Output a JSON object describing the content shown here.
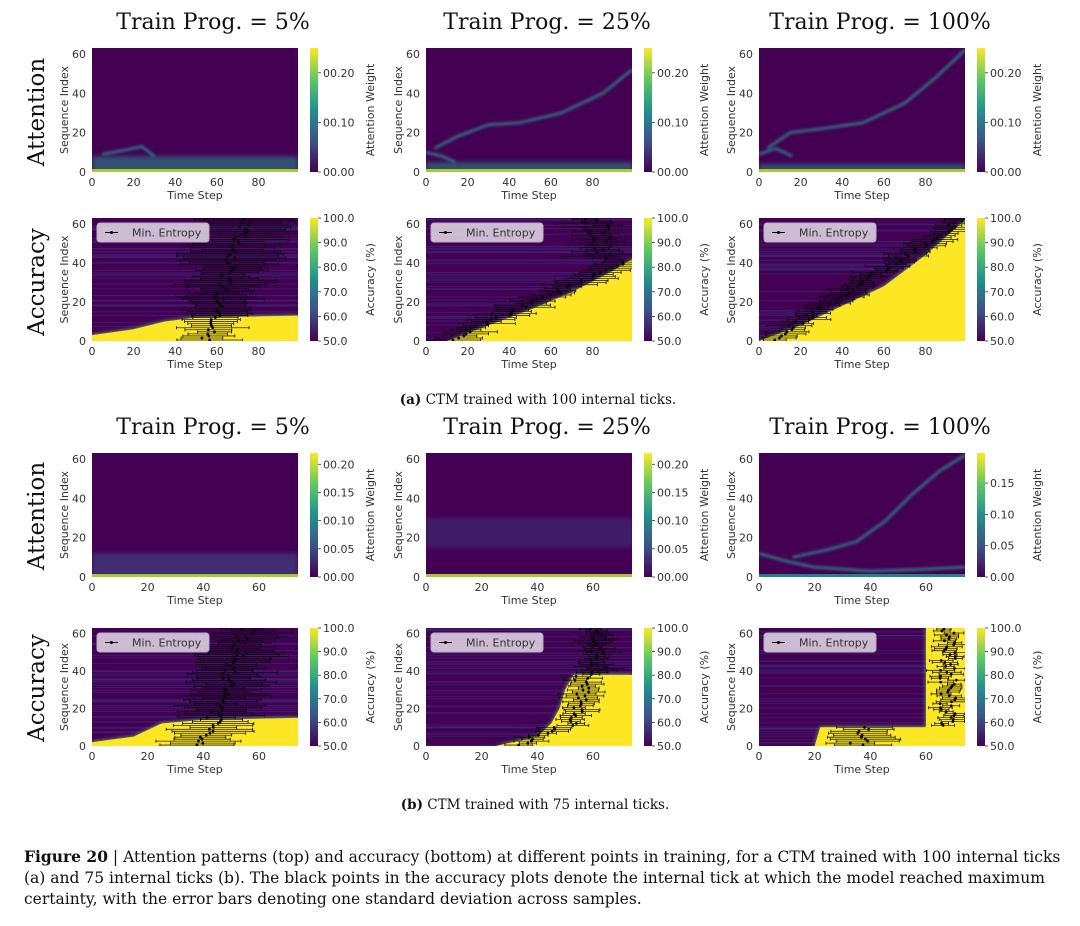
{
  "figure": {
    "column_titles": [
      "Train Prog. = 5%",
      "Train Prog. = 25%",
      "Train Prog. = 100%"
    ],
    "row_labels": [
      "Attention",
      "Accuracy"
    ],
    "subcaptions": [
      {
        "label": "(a)",
        "text": "CTM trained with 100 internal ticks."
      },
      {
        "label": "(b)",
        "text": "CTM trained with 75 internal ticks."
      }
    ],
    "caption": {
      "label": "Figure 20",
      "text": " | Attention patterns (top) and accuracy (bottom) at different points in training, for a CTM trained with 100 internal ticks (a) and 75 internal ticks (b). The black points in the accuracy plots denote the internal tick at which the model reached maximum certainty, with the error bars denoting one standard deviation across samples."
    },
    "legend_label": "Min. Entropy"
  },
  "chart_data": [
    {
      "type": "heatmap",
      "group": "a",
      "row": "Attention",
      "title": "Train Prog. = 5%",
      "xlabel": "Time Step",
      "ylabel": "Sequence Index",
      "colorbar_label": "Attention Weight",
      "xlim": [
        0,
        99
      ],
      "ylim": [
        0,
        63
      ],
      "xticks": [
        "0",
        "20",
        "40",
        "60",
        "80"
      ],
      "yticks": [
        "0",
        "20",
        "40",
        "60"
      ],
      "cbar_range": [
        0,
        0.25
      ],
      "cbar_ticks": [
        "00.00",
        "00.10",
        "00.20"
      ],
      "colormap": "viridis"
    },
    {
      "type": "heatmap",
      "group": "a",
      "row": "Attention",
      "title": "Train Prog. = 25%",
      "xlabel": "Time Step",
      "ylabel": "Sequence Index",
      "colorbar_label": "Attention Weight",
      "xlim": [
        0,
        99
      ],
      "ylim": [
        0,
        63
      ],
      "xticks": [
        "0",
        "20",
        "40",
        "60",
        "80"
      ],
      "yticks": [
        "0",
        "20",
        "40",
        "60"
      ],
      "cbar_range": [
        0,
        0.25
      ],
      "cbar_ticks": [
        "00.00",
        "00.10",
        "00.20"
      ],
      "colormap": "viridis"
    },
    {
      "type": "heatmap",
      "group": "a",
      "row": "Attention",
      "title": "Train Prog. = 100%",
      "xlabel": "Time Step",
      "ylabel": "Sequence Index",
      "colorbar_label": "Attention Weight",
      "xlim": [
        0,
        99
      ],
      "ylim": [
        0,
        63
      ],
      "xticks": [
        "0",
        "20",
        "40",
        "60",
        "80"
      ],
      "yticks": [
        "0",
        "20",
        "40",
        "60"
      ],
      "cbar_range": [
        0,
        0.25
      ],
      "cbar_ticks": [
        "00.00",
        "00.10",
        "00.20"
      ],
      "colormap": "viridis"
    },
    {
      "type": "heatmap",
      "group": "a",
      "row": "Accuracy",
      "title": "Train Prog. = 5%",
      "xlabel": "Time Step",
      "ylabel": "Sequence Index",
      "colorbar_label": "Accuracy (%)",
      "xlim": [
        0,
        99
      ],
      "ylim": [
        0,
        63
      ],
      "xticks": [
        "0",
        "20",
        "40",
        "60",
        "80"
      ],
      "yticks": [
        "0",
        "20",
        "40",
        "60"
      ],
      "cbar_range": [
        50,
        100
      ],
      "cbar_ticks": [
        "50.0",
        "60.0",
        "70.0",
        "80.0",
        "90.0",
        "100.0"
      ],
      "legend": "Min. Entropy",
      "legend_position": "top-left",
      "colormap": "viridis"
    },
    {
      "type": "heatmap",
      "group": "a",
      "row": "Accuracy",
      "title": "Train Prog. = 25%",
      "xlabel": "Time Step",
      "ylabel": "Sequence Index",
      "colorbar_label": "Accuracy (%)",
      "xlim": [
        0,
        99
      ],
      "ylim": [
        0,
        63
      ],
      "xticks": [
        "0",
        "20",
        "40",
        "60",
        "80"
      ],
      "yticks": [
        "0",
        "20",
        "40",
        "60"
      ],
      "cbar_range": [
        50,
        100
      ],
      "cbar_ticks": [
        "50.0",
        "60.0",
        "70.0",
        "80.0",
        "90.0",
        "100.0"
      ],
      "legend": "Min. Entropy",
      "legend_position": "top-left",
      "colormap": "viridis"
    },
    {
      "type": "heatmap",
      "group": "a",
      "row": "Accuracy",
      "title": "Train Prog. = 100%",
      "xlabel": "Time Step",
      "ylabel": "Sequence Index",
      "colorbar_label": "Accuracy (%)",
      "xlim": [
        0,
        99
      ],
      "ylim": [
        0,
        63
      ],
      "xticks": [
        "0",
        "20",
        "40",
        "60",
        "80"
      ],
      "yticks": [
        "0",
        "20",
        "40",
        "60"
      ],
      "cbar_range": [
        50,
        100
      ],
      "cbar_ticks": [
        "50.0",
        "60.0",
        "70.0",
        "80.0",
        "90.0",
        "100.0"
      ],
      "legend": "Min. Entropy",
      "legend_position": "top-left",
      "colormap": "viridis"
    },
    {
      "type": "heatmap",
      "group": "b",
      "row": "Attention",
      "title": "Train Prog. = 5%",
      "xlabel": "Time Step",
      "ylabel": "Sequence Index",
      "colorbar_label": "Attention Weight",
      "xlim": [
        0,
        74
      ],
      "ylim": [
        0,
        63
      ],
      "xticks": [
        "0",
        "20",
        "40",
        "60"
      ],
      "yticks": [
        "0",
        "20",
        "40",
        "60"
      ],
      "cbar_range": [
        0,
        0.22
      ],
      "cbar_ticks": [
        "00.00",
        "00.05",
        "00.10",
        "00.15",
        "00.20"
      ],
      "colormap": "viridis"
    },
    {
      "type": "heatmap",
      "group": "b",
      "row": "Attention",
      "title": "Train Prog. = 25%",
      "xlabel": "Time Step",
      "ylabel": "Sequence Index",
      "colorbar_label": "Attention Weight",
      "xlim": [
        0,
        74
      ],
      "ylim": [
        0,
        63
      ],
      "xticks": [
        "0",
        "20",
        "40",
        "60"
      ],
      "yticks": [
        "0",
        "20",
        "40",
        "60"
      ],
      "cbar_range": [
        0,
        0.22
      ],
      "cbar_ticks": [
        "00.00",
        "00.05",
        "00.10",
        "00.15",
        "00.20"
      ],
      "colormap": "viridis"
    },
    {
      "type": "heatmap",
      "group": "b",
      "row": "Attention",
      "title": "Train Prog. = 100%",
      "xlabel": "Time Step",
      "ylabel": "Sequence Index",
      "colorbar_label": "Attention Weight",
      "xlim": [
        0,
        74
      ],
      "ylim": [
        0,
        63
      ],
      "xticks": [
        "0",
        "20",
        "40",
        "60"
      ],
      "yticks": [
        "0",
        "20",
        "40",
        "60"
      ],
      "cbar_range": [
        0,
        0.198
      ],
      "cbar_ticks": [
        "0.00",
        "0.05",
        "0.10",
        "0.15"
      ],
      "colormap": "viridis"
    },
    {
      "type": "heatmap",
      "group": "b",
      "row": "Accuracy",
      "title": "Train Prog. = 5%",
      "xlabel": "Time Step",
      "ylabel": "Sequence Index",
      "colorbar_label": "Accuracy (%)",
      "xlim": [
        0,
        74
      ],
      "ylim": [
        0,
        63
      ],
      "xticks": [
        "0",
        "20",
        "40",
        "60"
      ],
      "yticks": [
        "0",
        "20",
        "40",
        "60"
      ],
      "cbar_range": [
        50,
        100
      ],
      "cbar_ticks": [
        "50.0",
        "60.0",
        "70.0",
        "80.0",
        "90.0",
        "100.0"
      ],
      "legend": "Min. Entropy",
      "legend_position": "top-left",
      "colormap": "viridis"
    },
    {
      "type": "heatmap",
      "group": "b",
      "row": "Accuracy",
      "title": "Train Prog. = 25%",
      "xlabel": "Time Step",
      "ylabel": "Sequence Index",
      "colorbar_label": "Accuracy (%)",
      "xlim": [
        0,
        74
      ],
      "ylim": [
        0,
        63
      ],
      "xticks": [
        "0",
        "20",
        "40",
        "60"
      ],
      "yticks": [
        "0",
        "20",
        "40",
        "60"
      ],
      "cbar_range": [
        50,
        100
      ],
      "cbar_ticks": [
        "50.0",
        "60.0",
        "70.0",
        "80.0",
        "90.0",
        "100.0"
      ],
      "legend": "Min. Entropy",
      "legend_position": "top-left",
      "colormap": "viridis"
    },
    {
      "type": "heatmap",
      "group": "b",
      "row": "Accuracy",
      "title": "Train Prog. = 100%",
      "xlabel": "Time Step",
      "ylabel": "Sequence Index",
      "colorbar_label": "Accuracy (%)",
      "xlim": [
        0,
        74
      ],
      "ylim": [
        0,
        63
      ],
      "xticks": [
        "0",
        "20",
        "40",
        "60"
      ],
      "yticks": [
        "0",
        "20",
        "40",
        "60"
      ],
      "cbar_range": [
        50,
        100
      ],
      "cbar_ticks": [
        "50.0",
        "60.0",
        "70.0",
        "80.0",
        "90.0",
        "100.0"
      ],
      "legend": "Min. Entropy",
      "legend_position": "top-left",
      "colormap": "viridis"
    }
  ]
}
